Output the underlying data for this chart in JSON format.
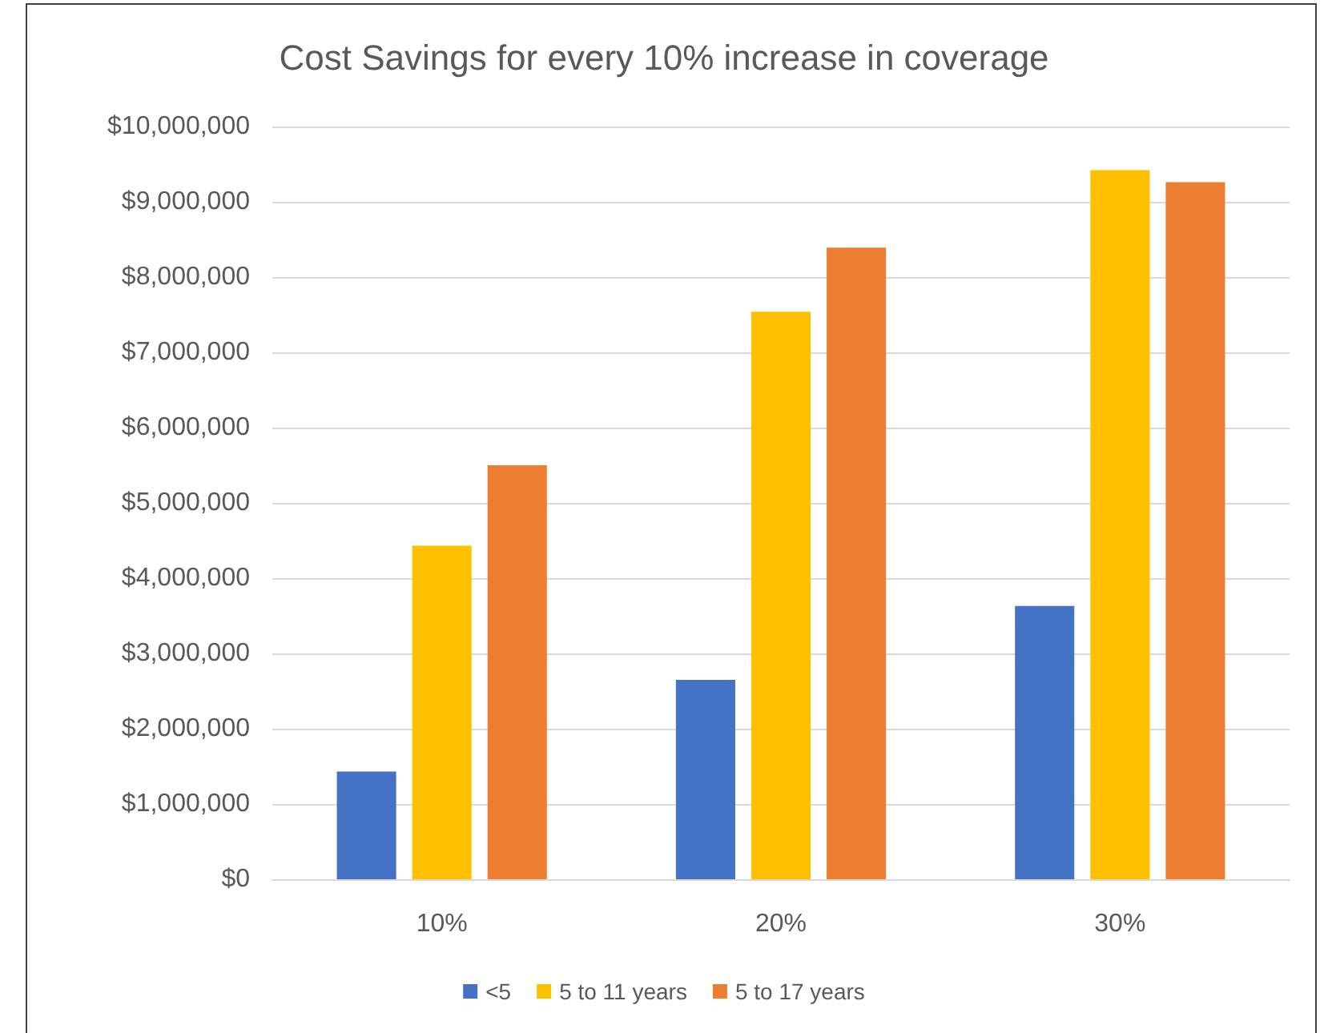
{
  "chart_data": {
    "type": "bar",
    "title": "Cost Savings for every 10% increase in coverage",
    "categories": [
      "10%",
      "20%",
      "30%"
    ],
    "series": [
      {
        "name": "<5",
        "color": "#4472c4",
        "values": [
          1430000,
          2650000,
          3630000
        ]
      },
      {
        "name": "5 to 11 years",
        "color": "#ffc000",
        "values": [
          4430000,
          7540000,
          9420000
        ]
      },
      {
        "name": "5 to 17 years",
        "color": "#ed7d31",
        "values": [
          5500000,
          8390000,
          9260000
        ]
      }
    ],
    "ylim": [
      0,
      10000000
    ],
    "yticks": [
      {
        "value": 0,
        "label": "$0"
      },
      {
        "value": 1000000,
        "label": "$1,000,000"
      },
      {
        "value": 2000000,
        "label": "$2,000,000"
      },
      {
        "value": 3000000,
        "label": "$3,000,000"
      },
      {
        "value": 4000000,
        "label": "$4,000,000"
      },
      {
        "value": 5000000,
        "label": "$5,000,000"
      },
      {
        "value": 6000000,
        "label": "$6,000,000"
      },
      {
        "value": 7000000,
        "label": "$7,000,000"
      },
      {
        "value": 8000000,
        "label": "$8,000,000"
      },
      {
        "value": 9000000,
        "label": "$9,000,000"
      },
      {
        "value": 10000000,
        "label": "$10,000,000"
      }
    ],
    "grid": "y",
    "legend": "bottom"
  }
}
